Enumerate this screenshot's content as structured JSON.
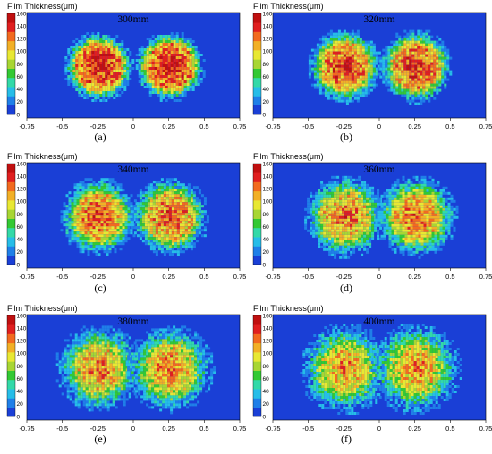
{
  "figure": {
    "panels": [
      {
        "title": "300mm",
        "label": "(a)"
      },
      {
        "title": "320mm",
        "label": "(b)"
      },
      {
        "title": "340mm",
        "label": "(c)"
      },
      {
        "title": "360mm",
        "label": "(d)"
      },
      {
        "title": "380mm",
        "label": "(e)"
      },
      {
        "title": "400mm",
        "label": "(f)"
      }
    ],
    "colorbar_title": "Film Thickness(μm)",
    "colorbar_ticks": [
      160,
      140,
      120,
      100,
      80,
      60,
      40,
      20,
      0
    ],
    "x_ticks": [
      "-0.75",
      "-0.5",
      "-0.25",
      "0",
      "0.25",
      "0.5",
      "0.75"
    ],
    "colors": {
      "background": "#1a3fd6",
      "scale": [
        "#1a3fd6",
        "#1f7fe8",
        "#26bde8",
        "#33d9a8",
        "#33c933",
        "#a8d633",
        "#e8e833",
        "#f2b026",
        "#f26a1f",
        "#e01f1f",
        "#c01010"
      ]
    }
  },
  "chart_data": [
    {
      "type": "heatmap",
      "title": "300mm",
      "label": "(a)",
      "xlim": [
        -0.75,
        0.75
      ],
      "x_ticks": [
        -0.75,
        -0.5,
        -0.25,
        0,
        0.25,
        0.5,
        0.75
      ],
      "colorbar_label": "Film Thickness(μm)",
      "colorbar_range": [
        0,
        160
      ],
      "spot_centers": [
        -0.25,
        0.25
      ],
      "peak_value": 160
    },
    {
      "type": "heatmap",
      "title": "320mm",
      "label": "(b)",
      "xlim": [
        -0.75,
        0.75
      ],
      "x_ticks": [
        -0.75,
        -0.5,
        -0.25,
        0,
        0.25,
        0.5,
        0.75
      ],
      "colorbar_label": "Film Thickness(μm)",
      "colorbar_range": [
        0,
        160
      ],
      "spot_centers": [
        -0.25,
        0.25
      ],
      "peak_value": 150
    },
    {
      "type": "heatmap",
      "title": "340mm",
      "label": "(c)",
      "xlim": [
        -0.75,
        0.75
      ],
      "x_ticks": [
        -0.75,
        -0.5,
        -0.25,
        0,
        0.25,
        0.5,
        0.75
      ],
      "colorbar_label": "Film Thickness(μm)",
      "colorbar_range": [
        0,
        160
      ],
      "spot_centers": [
        -0.25,
        0.25
      ],
      "peak_value": 140
    },
    {
      "type": "heatmap",
      "title": "360mm",
      "label": "(d)",
      "xlim": [
        -0.75,
        0.75
      ],
      "x_ticks": [
        -0.75,
        -0.5,
        -0.25,
        0,
        0.25,
        0.5,
        0.75
      ],
      "colorbar_label": "Film Thickness(μm)",
      "colorbar_range": [
        0,
        160
      ],
      "spot_centers": [
        -0.25,
        0.25
      ],
      "peak_value": 135
    },
    {
      "type": "heatmap",
      "title": "380mm",
      "label": "(e)",
      "xlim": [
        -0.75,
        0.75
      ],
      "x_ticks": [
        -0.75,
        -0.5,
        -0.25,
        0,
        0.25,
        0.5,
        0.75
      ],
      "colorbar_label": "Film Thickness(μm)",
      "colorbar_range": [
        0,
        160
      ],
      "spot_centers": [
        -0.25,
        0.25
      ],
      "peak_value": 130
    },
    {
      "type": "heatmap",
      "title": "400mm",
      "label": "(f)",
      "xlim": [
        -0.75,
        0.75
      ],
      "x_ticks": [
        -0.75,
        -0.5,
        -0.25,
        0,
        0.25,
        0.5,
        0.75
      ],
      "colorbar_label": "Film Thickness(μm)",
      "colorbar_range": [
        0,
        160
      ],
      "spot_centers": [
        -0.25,
        0.25
      ],
      "peak_value": 125
    }
  ]
}
